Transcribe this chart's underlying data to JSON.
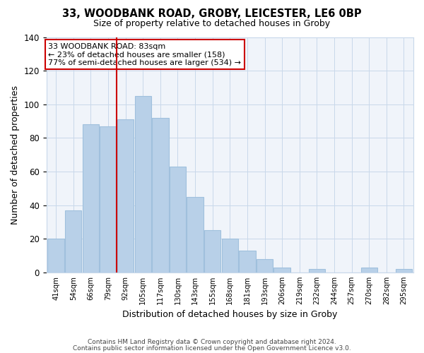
{
  "title1": "33, WOODBANK ROAD, GROBY, LEICESTER, LE6 0BP",
  "title2": "Size of property relative to detached houses in Groby",
  "xlabel": "Distribution of detached houses by size in Groby",
  "ylabel": "Number of detached properties",
  "bin_labels": [
    "41sqm",
    "54sqm",
    "66sqm",
    "79sqm",
    "92sqm",
    "105sqm",
    "117sqm",
    "130sqm",
    "143sqm",
    "155sqm",
    "168sqm",
    "181sqm",
    "193sqm",
    "206sqm",
    "219sqm",
    "232sqm",
    "244sqm",
    "257sqm",
    "270sqm",
    "282sqm",
    "295sqm"
  ],
  "bar_heights": [
    20,
    37,
    88,
    87,
    91,
    105,
    92,
    63,
    45,
    25,
    20,
    13,
    8,
    3,
    0,
    2,
    0,
    0,
    3,
    0,
    2
  ],
  "bar_color": "#b8d0e8",
  "bar_edge_color": "#a0c0dd",
  "annotation_text_line1": "33 WOODBANK ROAD: 83sqm",
  "annotation_text_line2": "← 23% of detached houses are smaller (158)",
  "annotation_text_line3": "77% of semi-detached houses are larger (534) →",
  "vline_color": "#cc0000",
  "annotation_box_edge_color": "#cc0000",
  "vline_bar_index": 3,
  "ylim": [
    0,
    140
  ],
  "yticks": [
    0,
    20,
    40,
    60,
    80,
    100,
    120,
    140
  ],
  "footer1": "Contains HM Land Registry data © Crown copyright and database right 2024.",
  "footer2": "Contains public sector information licensed under the Open Government Licence v3.0.",
  "background_color": "#f0f4fa"
}
